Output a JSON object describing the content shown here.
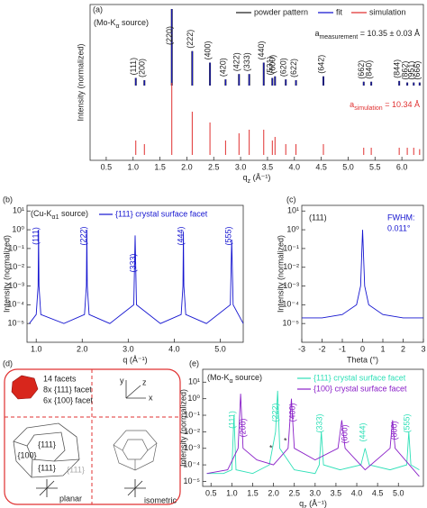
{
  "chart_data": [
    {
      "type": "stem",
      "panel_label": "(a)",
      "source": {
        "pre": "(Mo-K",
        "sub": "α",
        "post": " source)"
      },
      "ylabel": "Intensity (normalized)",
      "xlabel": {
        "symbol": "q",
        "sub": "z",
        "unit": " (Å⁻¹)"
      },
      "annotations": [
        {
          "symbol": "a",
          "sub": "measurement",
          "rest": " = 10.35 ± 0.03 Å"
        },
        {
          "symbol": "a",
          "sub": "simulation",
          "rest": " = 10.34 Å"
        }
      ],
      "xlim": [
        0.2,
        6.4
      ],
      "xticks": [
        0.5,
        {
          "value": 1,
          "label": "1.0"
        },
        1.5,
        {
          "value": 2,
          "label": "2.0"
        },
        2.5,
        {
          "value": 3,
          "label": "3.0"
        },
        3.5,
        {
          "value": 4,
          "label": "4.0"
        },
        4.5,
        {
          "value": 5,
          "label": "5.0"
        },
        5.5,
        {
          "value": 6,
          "label": "6.0"
        }
      ],
      "categories": [
        "(111)",
        "(200)",
        "(220)",
        "(222)",
        "(400)",
        "(420)",
        "(422)",
        "(333)",
        "(440)",
        "(531)",
        "(600)",
        "(620)",
        "(622)",
        "(642)",
        "(662)",
        "(840)",
        "(844)",
        "(862)",
        "(951)",
        "(666)"
      ],
      "x": [
        1.05,
        1.21,
        1.72,
        2.1,
        2.43,
        2.72,
        2.97,
        3.16,
        3.43,
        3.59,
        3.64,
        3.84,
        4.03,
        4.54,
        5.29,
        5.43,
        5.95,
        6.1,
        6.22,
        6.33
      ],
      "series": [
        {
          "name": "powder pattern",
          "color": "#222222",
          "values": [
            0.1,
            0.07,
            1.0,
            0.45,
            0.3,
            0.08,
            0.15,
            0.15,
            0.3,
            0.1,
            0.12,
            0.08,
            0.07,
            0.12,
            0.05,
            0.05,
            0.06,
            0.04,
            0.04,
            0.04
          ]
        },
        {
          "name": "fit",
          "color": "#1515d0",
          "values": [
            0.1,
            0.07,
            1.0,
            0.45,
            0.3,
            0.08,
            0.15,
            0.15,
            0.3,
            0.1,
            0.12,
            0.08,
            0.07,
            0.12,
            0.05,
            0.05,
            0.06,
            0.04,
            0.04,
            0.04
          ]
        },
        {
          "name": "simulation",
          "color": "#e03030",
          "values": [
            0.2,
            0.15,
            1.0,
            0.6,
            0.45,
            0.2,
            0.3,
            0.35,
            0.35,
            0.2,
            0.25,
            0.15,
            0.15,
            0.15,
            0.1,
            0.1,
            0.1,
            0.1,
            0.1,
            0.08
          ]
        }
      ]
    },
    {
      "type": "line",
      "panel_label": "(b)",
      "log_y": true,
      "source": {
        "pre": "(Cu-K",
        "sub": "α1",
        "post": " source)"
      },
      "ylabel": "Intensity (normalized)",
      "xlabel": "q (Å⁻¹)",
      "xlim": [
        0.8,
        5.5
      ],
      "xticks": [
        {
          "value": 1,
          "label": "1.0"
        },
        {
          "value": 2,
          "label": "2.0"
        },
        {
          "value": 3,
          "label": "3.0"
        },
        {
          "value": 4,
          "label": "4.0"
        },
        {
          "value": 5,
          "label": "5.0"
        }
      ],
      "ylim": [
        1e-06,
        20
      ],
      "yticks": [
        {
          "value": 10,
          "label": "10¹"
        },
        {
          "value": 1,
          "label": "10⁰"
        },
        {
          "value": 0.1,
          "label": "10⁻¹"
        },
        {
          "value": 0.01,
          "label": "10⁻²"
        },
        {
          "value": 0.001,
          "label": "10⁻³"
        },
        {
          "value": 0.0001,
          "label": "10⁻⁴"
        },
        {
          "value": 1e-05,
          "label": "10⁻⁵"
        }
      ],
      "series": [
        {
          "name": "{111} crystal surface facet",
          "color": "#1515d0",
          "peak_labels": [
            "(111)",
            "(222)",
            "(333)",
            "(444)",
            "(555)"
          ],
          "x": [
            0.85,
            1.0,
            1.04,
            1.05,
            1.06,
            1.1,
            1.6,
            2.05,
            2.09,
            2.1,
            2.11,
            2.15,
            2.6,
            3.12,
            3.15,
            3.18,
            3.7,
            4.15,
            4.19,
            4.2,
            4.21,
            4.25,
            4.7,
            5.22,
            5.25,
            5.28,
            5.5
          ],
          "values": [
            1e-05,
            3e-05,
            0.001,
            1,
            0.001,
            3e-05,
            1e-05,
            3e-05,
            0.001,
            1,
            0.001,
            3e-05,
            1e-05,
            0.0001,
            0.5,
            0.0001,
            1e-05,
            3e-05,
            0.001,
            0.8,
            0.001,
            3e-05,
            1e-05,
            0.0001,
            0.3,
            0.0001,
            1e-05
          ]
        }
      ]
    },
    {
      "type": "line",
      "panel_label": "(c)",
      "log_y": true,
      "ylabel": "Intensity (normalized)",
      "xlabel": "Theta (°)",
      "annotations": [
        "(111)",
        "FWHM:",
        "0.011°"
      ],
      "xlim": [
        -3,
        3
      ],
      "xticks": [
        -3,
        -2,
        -1,
        0,
        1,
        2,
        3
      ],
      "ylim": [
        1e-06,
        20
      ],
      "yticks": [
        {
          "value": 10,
          "label": "10¹"
        },
        {
          "value": 1,
          "label": "10⁰"
        },
        {
          "value": 0.1,
          "label": "10⁻¹"
        },
        {
          "value": 0.01,
          "label": "10⁻²"
        },
        {
          "value": 0.001,
          "label": "10⁻³"
        },
        {
          "value": 0.0001,
          "label": "10⁻⁴"
        },
        {
          "value": 1e-05,
          "label": "10⁻⁵"
        }
      ],
      "series": [
        {
          "color": "#1515d0",
          "x": [
            -3,
            -2,
            -1,
            -0.3,
            -0.1,
            0,
            0.1,
            0.3,
            1,
            2,
            3
          ],
          "values": [
            2e-05,
            2e-05,
            3e-05,
            0.0001,
            0.001,
            1,
            0.001,
            0.0001,
            3e-05,
            2e-05,
            2e-05
          ]
        }
      ]
    },
    {
      "type": "line",
      "panel_label": "(e)",
      "log_y": true,
      "source": {
        "pre": "(Mo-K",
        "sub": "α",
        "post": " source)"
      },
      "ylabel": "Intensity (normalized)",
      "xlabel": {
        "symbol": "q",
        "sub": "z",
        "unit": " (Å⁻¹)"
      },
      "annotations": [
        "*",
        "*"
      ],
      "xlim": [
        0.3,
        5.6
      ],
      "xticks": [
        0.5,
        {
          "value": 1,
          "label": "1.0"
        },
        1.5,
        {
          "value": 2,
          "label": "2.0"
        },
        2.5,
        {
          "value": 3,
          "label": "3.0"
        },
        3.5,
        {
          "value": 4,
          "label": "4.0"
        },
        4.5,
        {
          "value": 5,
          "label": "5.0"
        }
      ],
      "ylim": [
        5e-06,
        60
      ],
      "yticks": [
        {
          "value": 10,
          "label": "10¹"
        },
        {
          "value": 1,
          "label": "10⁰"
        },
        {
          "value": 0.1,
          "label": "10⁻¹"
        },
        {
          "value": 0.01,
          "label": "10⁻²"
        },
        {
          "value": 0.001,
          "label": "10⁻³"
        },
        {
          "value": 0.0001,
          "label": "10⁻⁴"
        },
        {
          "value": 1e-05,
          "label": "10⁻⁵"
        }
      ],
      "series": [
        {
          "name": "{111} crystal surface facet",
          "color": "#30e0b8",
          "peak_labels": [
            "(111)",
            "(222)",
            "(333)",
            "(444)",
            "(555)"
          ],
          "x": [
            0.4,
            0.8,
            1.0,
            1.05,
            1.1,
            1.5,
            1.9,
            2.05,
            2.1,
            2.15,
            2.5,
            3.0,
            3.1,
            3.15,
            3.2,
            3.6,
            4.1,
            4.2,
            4.3,
            4.8,
            5.2,
            5.25,
            5.3,
            5.5
          ],
          "values": [
            3e-05,
            3e-05,
            5e-05,
            0.1,
            5e-05,
            3e-05,
            0.0001,
            0.01,
            3,
            0.001,
            5e-05,
            3e-05,
            0.0001,
            0.01,
            0.0001,
            5e-05,
            0.0001,
            0.001,
            0.0001,
            5e-05,
            0.0001,
            0.01,
            0.0001,
            5e-05
          ]
        },
        {
          "name": "{100} crystal surface facet",
          "color": "#8a20c8",
          "peak_labels": [
            "(200)",
            "(400)",
            "(600)",
            "(800)"
          ],
          "x": [
            0.4,
            0.9,
            1.15,
            1.21,
            1.27,
            1.6,
            2.0,
            2.35,
            2.43,
            2.5,
            3.0,
            3.55,
            3.64,
            3.72,
            4.2,
            4.8,
            4.86,
            4.92,
            5.5
          ],
          "values": [
            3e-05,
            5e-05,
            0.001,
            2,
            0.001,
            0.0002,
            0.0001,
            0.001,
            1,
            0.001,
            0.0002,
            0.001,
            0.05,
            0.001,
            5e-05,
            0.001,
            0.05,
            0.001,
            2e-05
          ]
        }
      ]
    }
  ],
  "diagram": {
    "label": "(d)",
    "facets": [
      "14 facets",
      "8x {111} facet",
      "6x {100} facet"
    ],
    "axes": [
      "x",
      "y",
      "z"
    ],
    "faces": [
      "{111}",
      "{100}",
      "{111}",
      "{111}"
    ],
    "captions": [
      "planar",
      "isometric"
    ]
  }
}
